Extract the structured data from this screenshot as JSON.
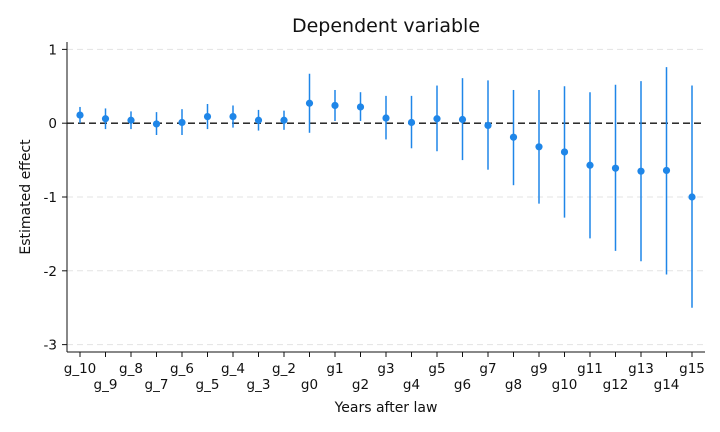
{
  "chart_data": {
    "type": "scatter",
    "title": "Dependent variable",
    "xlabel": "Years after law",
    "ylabel": "Estimated effect",
    "ylim": [
      -3.1,
      1.1
    ],
    "yticks": [
      1,
      0,
      -1,
      -2,
      -3
    ],
    "ytick_labels": [
      "1",
      "0",
      "-1",
      "-2",
      "-3"
    ],
    "grid": true,
    "reference_line_y": 0,
    "colors": {
      "point": "#1f86e8",
      "ci": "#1f86e8",
      "grid": "#e3e3e3",
      "reference": "#111111"
    },
    "categories": [
      "g_10",
      "g_9",
      "g_8",
      "g_7",
      "g_6",
      "g_5",
      "g_4",
      "g_3",
      "g_2",
      "g0",
      "g1",
      "g2",
      "g3",
      "g4",
      "g5",
      "g6",
      "g7",
      "g8",
      "g9",
      "g10",
      "g11",
      "g12",
      "g13",
      "g14",
      "g15"
    ],
    "estimates": [
      0.11,
      0.06,
      0.04,
      -0.01,
      0.01,
      0.09,
      0.09,
      0.04,
      0.04,
      0.27,
      0.24,
      0.22,
      0.07,
      0.01,
      0.06,
      0.05,
      -0.03,
      -0.19,
      -0.32,
      -0.39,
      -0.57,
      -0.61,
      -0.65,
      -0.64,
      -1.0
    ],
    "ci_lower": [
      0.0,
      -0.08,
      -0.08,
      -0.16,
      -0.16,
      -0.08,
      -0.06,
      -0.1,
      -0.09,
      -0.13,
      0.03,
      0.03,
      -0.22,
      -0.34,
      -0.38,
      -0.5,
      -0.63,
      -0.84,
      -1.09,
      -1.28,
      -1.56,
      -1.73,
      -1.87,
      -2.05,
      -2.5
    ],
    "ci_upper": [
      0.22,
      0.2,
      0.16,
      0.15,
      0.19,
      0.26,
      0.24,
      0.18,
      0.17,
      0.67,
      0.45,
      0.42,
      0.37,
      0.37,
      0.51,
      0.61,
      0.58,
      0.45,
      0.45,
      0.5,
      0.42,
      0.52,
      0.57,
      0.76,
      0.51
    ]
  }
}
